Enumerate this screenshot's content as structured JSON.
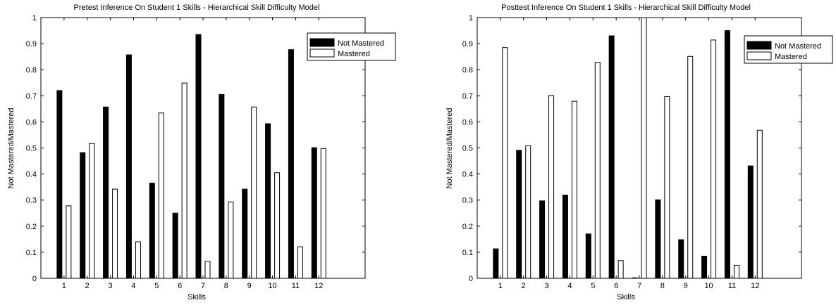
{
  "chart_data": [
    {
      "type": "bar",
      "title": "Pretest Inference On Student 1 Skills - Hierarchical Skill Difficulty Model",
      "xlabel": "Skills",
      "ylabel": "Not Mastered/Mastered",
      "ylim": [
        0,
        1
      ],
      "yticks": [
        "0",
        "0.1",
        "0.2",
        "0.3",
        "0.4",
        "0.5",
        "0.6",
        "0.7",
        "0.8",
        "0.9",
        "1"
      ],
      "categories": [
        "1",
        "2",
        "3",
        "4",
        "5",
        "6",
        "7",
        "8",
        "9",
        "10",
        "11",
        "12"
      ],
      "series": [
        {
          "name": "Not Mastered",
          "color": "#000000",
          "values": [
            0.72,
            0.482,
            0.657,
            0.857,
            0.365,
            0.25,
            0.935,
            0.705,
            0.342,
            0.593,
            0.877,
            0.501
          ]
        },
        {
          "name": "Mastered",
          "color": "#ffffff",
          "values": [
            0.278,
            0.517,
            0.342,
            0.14,
            0.634,
            0.749,
            0.065,
            0.293,
            0.657,
            0.405,
            0.121,
            0.498
          ]
        }
      ],
      "legend": "top-right",
      "grid": false
    },
    {
      "type": "bar",
      "title": "Posttest Inference On Student 1 Skills - Hierarchical Skill Difficulty Model",
      "xlabel": "Skills",
      "ylabel": "Not Mastered/Mastered",
      "ylim": [
        0,
        1
      ],
      "yticks": [
        "0",
        "0.1",
        "0.2",
        "0.3",
        "0.4",
        "0.5",
        "0.6",
        "0.7",
        "0.8",
        "0.9",
        "1"
      ],
      "categories": [
        "1",
        "2",
        "3",
        "4",
        "5",
        "6",
        "7",
        "8",
        "9",
        "10",
        "11",
        "12"
      ],
      "series": [
        {
          "name": "Not Mastered",
          "color": "#000000",
          "values": [
            0.113,
            0.491,
            0.297,
            0.319,
            0.17,
            0.93,
            0.002,
            0.301,
            0.148,
            0.085,
            0.95,
            0.431
          ]
        },
        {
          "name": "Mastered",
          "color": "#ffffff",
          "values": [
            0.885,
            0.508,
            0.701,
            0.679,
            0.828,
            0.068,
            1.0,
            0.697,
            0.851,
            0.914,
            0.05,
            0.568
          ]
        }
      ],
      "legend": "top-right",
      "grid": false
    }
  ]
}
